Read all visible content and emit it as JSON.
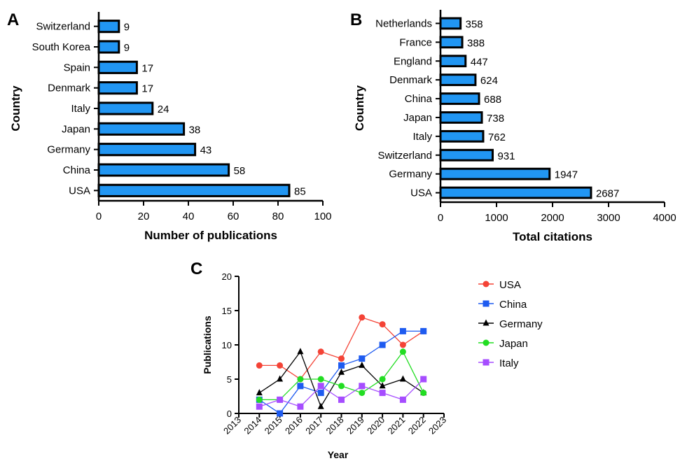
{
  "chart_data": [
    {
      "panel": "A",
      "type": "bar",
      "orientation": "horizontal",
      "categories": [
        "Switzerland",
        "South Korea",
        "Spain",
        "Denmark",
        "Italy",
        "Japan",
        "Germany",
        "China",
        "USA"
      ],
      "values": [
        9,
        9,
        17,
        17,
        24,
        38,
        43,
        58,
        85
      ],
      "data_labels": [
        "9",
        "9",
        "17",
        "17",
        "24",
        "38",
        "43",
        "58",
        "85"
      ],
      "xlabel": "Number of publications",
      "ylabel": "Country",
      "xlim": [
        0,
        100
      ],
      "xticks": [
        "0",
        "20",
        "40",
        "60",
        "80",
        "100"
      ],
      "bar_color": "#2196F3",
      "grid": false
    },
    {
      "panel": "B",
      "type": "bar",
      "orientation": "horizontal",
      "categories": [
        "Netherlands",
        "France",
        "England",
        "Denmark",
        "China",
        "Japan",
        "Italy",
        "Switzerland",
        "Germany",
        "USA"
      ],
      "values": [
        358,
        388,
        447,
        624,
        688,
        738,
        762,
        931,
        1947,
        2687
      ],
      "data_labels": [
        "358",
        "388",
        "447",
        "624",
        "688",
        "738",
        "762",
        "931",
        "1947",
        "2687"
      ],
      "xlabel": "Total citations",
      "ylabel": "Country",
      "xlim": [
        0,
        4000
      ],
      "xticks": [
        "0",
        "1000",
        "2000",
        "3000",
        "4000"
      ],
      "bar_color": "#2196F3",
      "grid": false
    },
    {
      "panel": "C",
      "type": "line",
      "x": [
        2014,
        2015,
        2016,
        2017,
        2018,
        2019,
        2020,
        2021,
        2022
      ],
      "xticks": [
        "2013",
        "2014",
        "2015",
        "2016",
        "2017",
        "2018",
        "2019",
        "2020",
        "2021",
        "2022",
        "2023"
      ],
      "xlim": [
        2013,
        2023
      ],
      "ylim": [
        0,
        20
      ],
      "yticks": [
        "0",
        "5",
        "10",
        "15",
        "20"
      ],
      "xlabel": "Year",
      "ylabel": "Publications",
      "legend": "right",
      "grid": false,
      "series": [
        {
          "name": "USA",
          "color": "#F44336",
          "marker": "circle",
          "values": [
            7,
            7,
            5,
            9,
            8,
            14,
            13,
            10,
            12
          ]
        },
        {
          "name": "China",
          "color": "#1E5BF0",
          "marker": "square",
          "values": [
            2,
            0,
            4,
            3,
            7,
            8,
            10,
            12,
            12
          ]
        },
        {
          "name": "Germany",
          "color": "#000000",
          "marker": "triangle",
          "values": [
            3,
            5,
            9,
            1,
            6,
            7,
            4,
            5,
            3
          ]
        },
        {
          "name": "Japan",
          "color": "#22DD22",
          "marker": "circle",
          "values": [
            2,
            2,
            5,
            5,
            4,
            3,
            5,
            9,
            3
          ]
        },
        {
          "name": "Italy",
          "color": "#A64DFF",
          "marker": "square",
          "values": [
            1,
            2,
            1,
            4,
            2,
            4,
            3,
            2,
            5
          ]
        }
      ]
    }
  ],
  "panel_labels": [
    "A",
    "B",
    "C"
  ]
}
